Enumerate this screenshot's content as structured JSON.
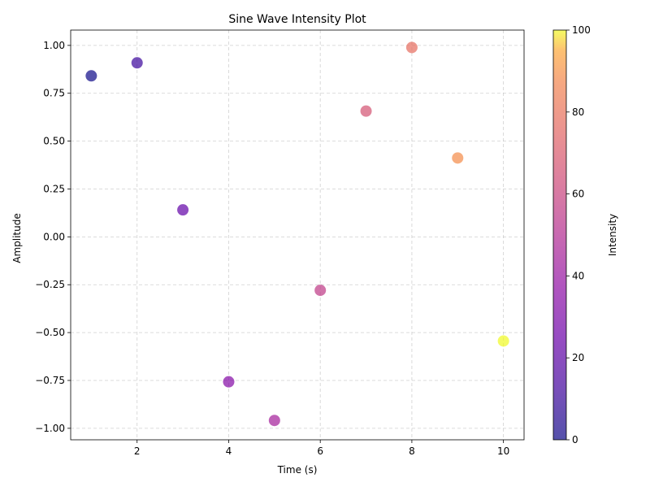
{
  "chart_data": {
    "type": "scatter",
    "title": "Sine Wave Intensity Plot",
    "xlabel": "Time (s)",
    "ylabel": "Amplitude",
    "xlim": [
      0.55,
      10.45
    ],
    "ylim": [
      -1.06,
      1.08
    ],
    "x_ticks": [
      2,
      4,
      6,
      8,
      10
    ],
    "x_tick_labels": [
      "2",
      "4",
      "6",
      "8",
      "10"
    ],
    "y_ticks": [
      -1.0,
      -0.75,
      -0.5,
      -0.25,
      0.0,
      0.25,
      0.5,
      0.75,
      1.0
    ],
    "y_tick_labels": [
      "−1.00",
      "−0.75",
      "−0.50",
      "−0.25",
      "0.00",
      "0.25",
      "0.50",
      "0.75",
      "1.00"
    ],
    "grid": true,
    "grid_style": "dashed",
    "colormap": "plasma",
    "marker_alpha": 0.7,
    "x": [
      1,
      2,
      3,
      4,
      5,
      6,
      7,
      8,
      9,
      10
    ],
    "y": [
      0.841,
      0.909,
      0.141,
      -0.757,
      -0.959,
      -0.279,
      0.657,
      0.989,
      0.412,
      -0.544
    ],
    "intensity": [
      0,
      11.1,
      22.2,
      33.3,
      44.4,
      55.6,
      66.7,
      77.8,
      88.9,
      100
    ],
    "colorbar": {
      "label": "Intensity",
      "range": [
        0,
        100
      ],
      "ticks": [
        0,
        20,
        40,
        60,
        80,
        100
      ],
      "tick_labels": [
        "0",
        "20",
        "40",
        "60",
        "80",
        "100"
      ]
    }
  }
}
